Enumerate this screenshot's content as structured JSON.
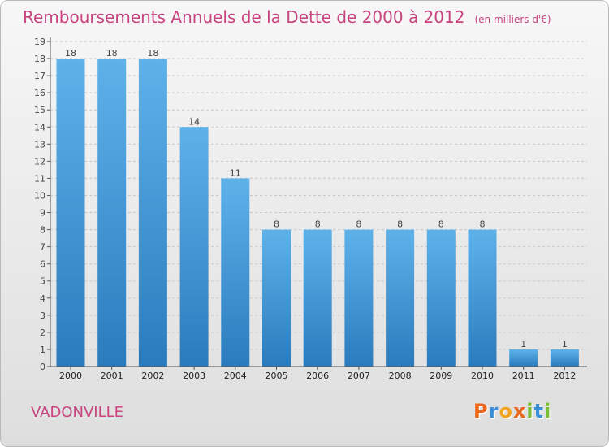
{
  "header": {
    "title": "Remboursements Annuels de la Dette de 2000 à 2012",
    "subtitle": "(en milliers d'€)"
  },
  "footer": {
    "city": "VADONVILLE",
    "logo": {
      "letters": [
        "P",
        "r",
        "o",
        "x",
        "i",
        "t",
        "i"
      ]
    }
  },
  "colors": {
    "title": "#c8437f",
    "bar_top": "#5eb2ea",
    "bar_bottom": "#2a7bbd",
    "logo": [
      "#e9661b",
      "#3b8ed3",
      "#f2a322",
      "#e9661b",
      "#7cbf37",
      "#3b8ed3",
      "#7cbf37"
    ]
  },
  "chart_data": {
    "type": "bar",
    "categories": [
      "2000",
      "2001",
      "2002",
      "2003",
      "2004",
      "2005",
      "2006",
      "2007",
      "2008",
      "2009",
      "2010",
      "2011",
      "2012"
    ],
    "values": [
      18,
      18,
      18,
      14,
      11,
      8,
      8,
      8,
      8,
      8,
      8,
      1,
      1
    ],
    "ylim": [
      0,
      19
    ],
    "yticks": [
      0,
      1,
      2,
      3,
      4,
      5,
      6,
      7,
      8,
      9,
      10,
      11,
      12,
      13,
      14,
      15,
      16,
      17,
      18,
      19
    ],
    "grid": true
  }
}
